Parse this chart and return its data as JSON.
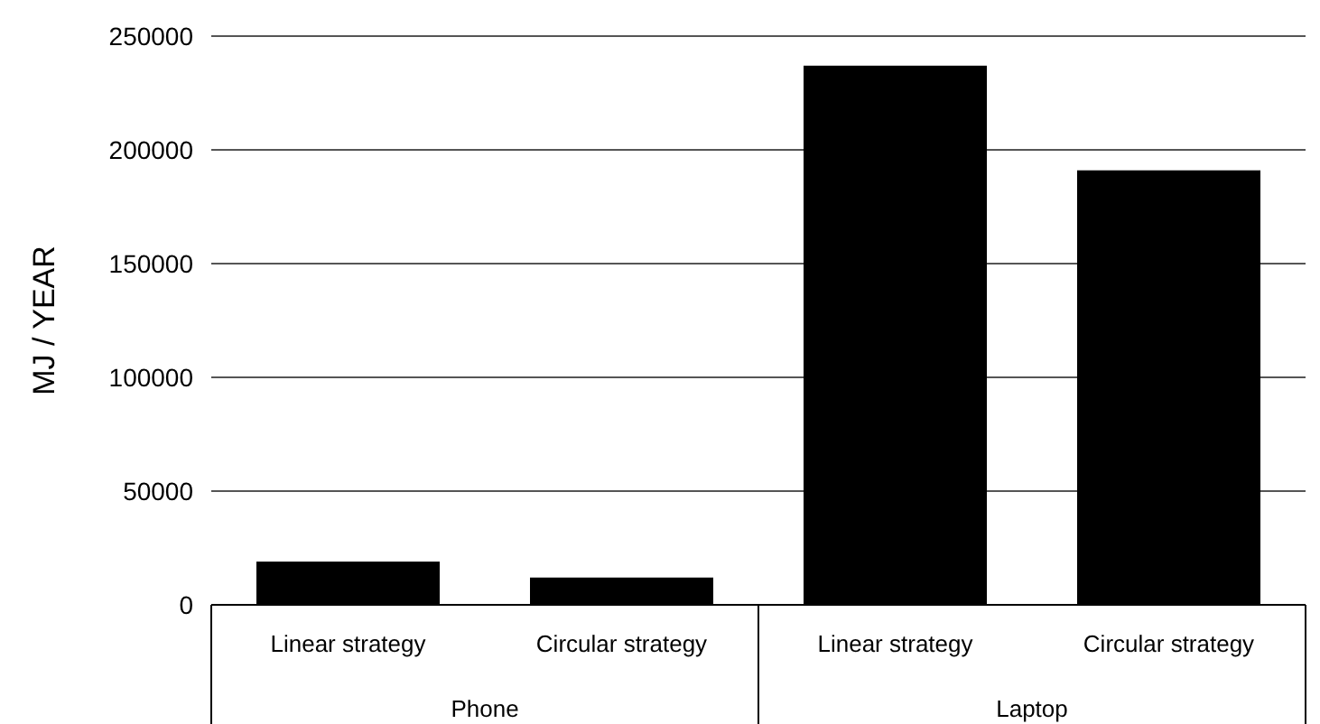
{
  "chart_data": {
    "type": "bar",
    "ylabel": "MJ / YEAR",
    "categories": [
      "Linear strategy",
      "Circular strategy",
      "Linear strategy",
      "Circular strategy"
    ],
    "values": [
      19000,
      12000,
      237000,
      191000
    ],
    "color": "#000000",
    "ylim": [
      0,
      250000
    ],
    "yticks": [
      0,
      50000,
      100000,
      150000,
      200000,
      250000
    ],
    "grid": "y",
    "annotations": [
      "Phone",
      "Laptop"
    ]
  }
}
